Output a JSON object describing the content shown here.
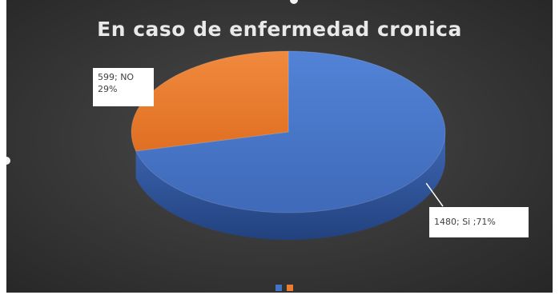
{
  "chart_data": {
    "type": "pie",
    "style": "3d",
    "title": "En caso de enfermedad cronica",
    "categories": [
      "Si",
      "NO"
    ],
    "values": [
      1480,
      599
    ],
    "percentages": [
      71,
      29
    ],
    "data_labels": [
      {
        "line1": "1480; Si ;71%"
      },
      {
        "line1": "599; NO",
        "line2": "29%"
      }
    ],
    "colors": [
      "#4472c4",
      "#ed7d31"
    ],
    "legend": "bottom"
  }
}
